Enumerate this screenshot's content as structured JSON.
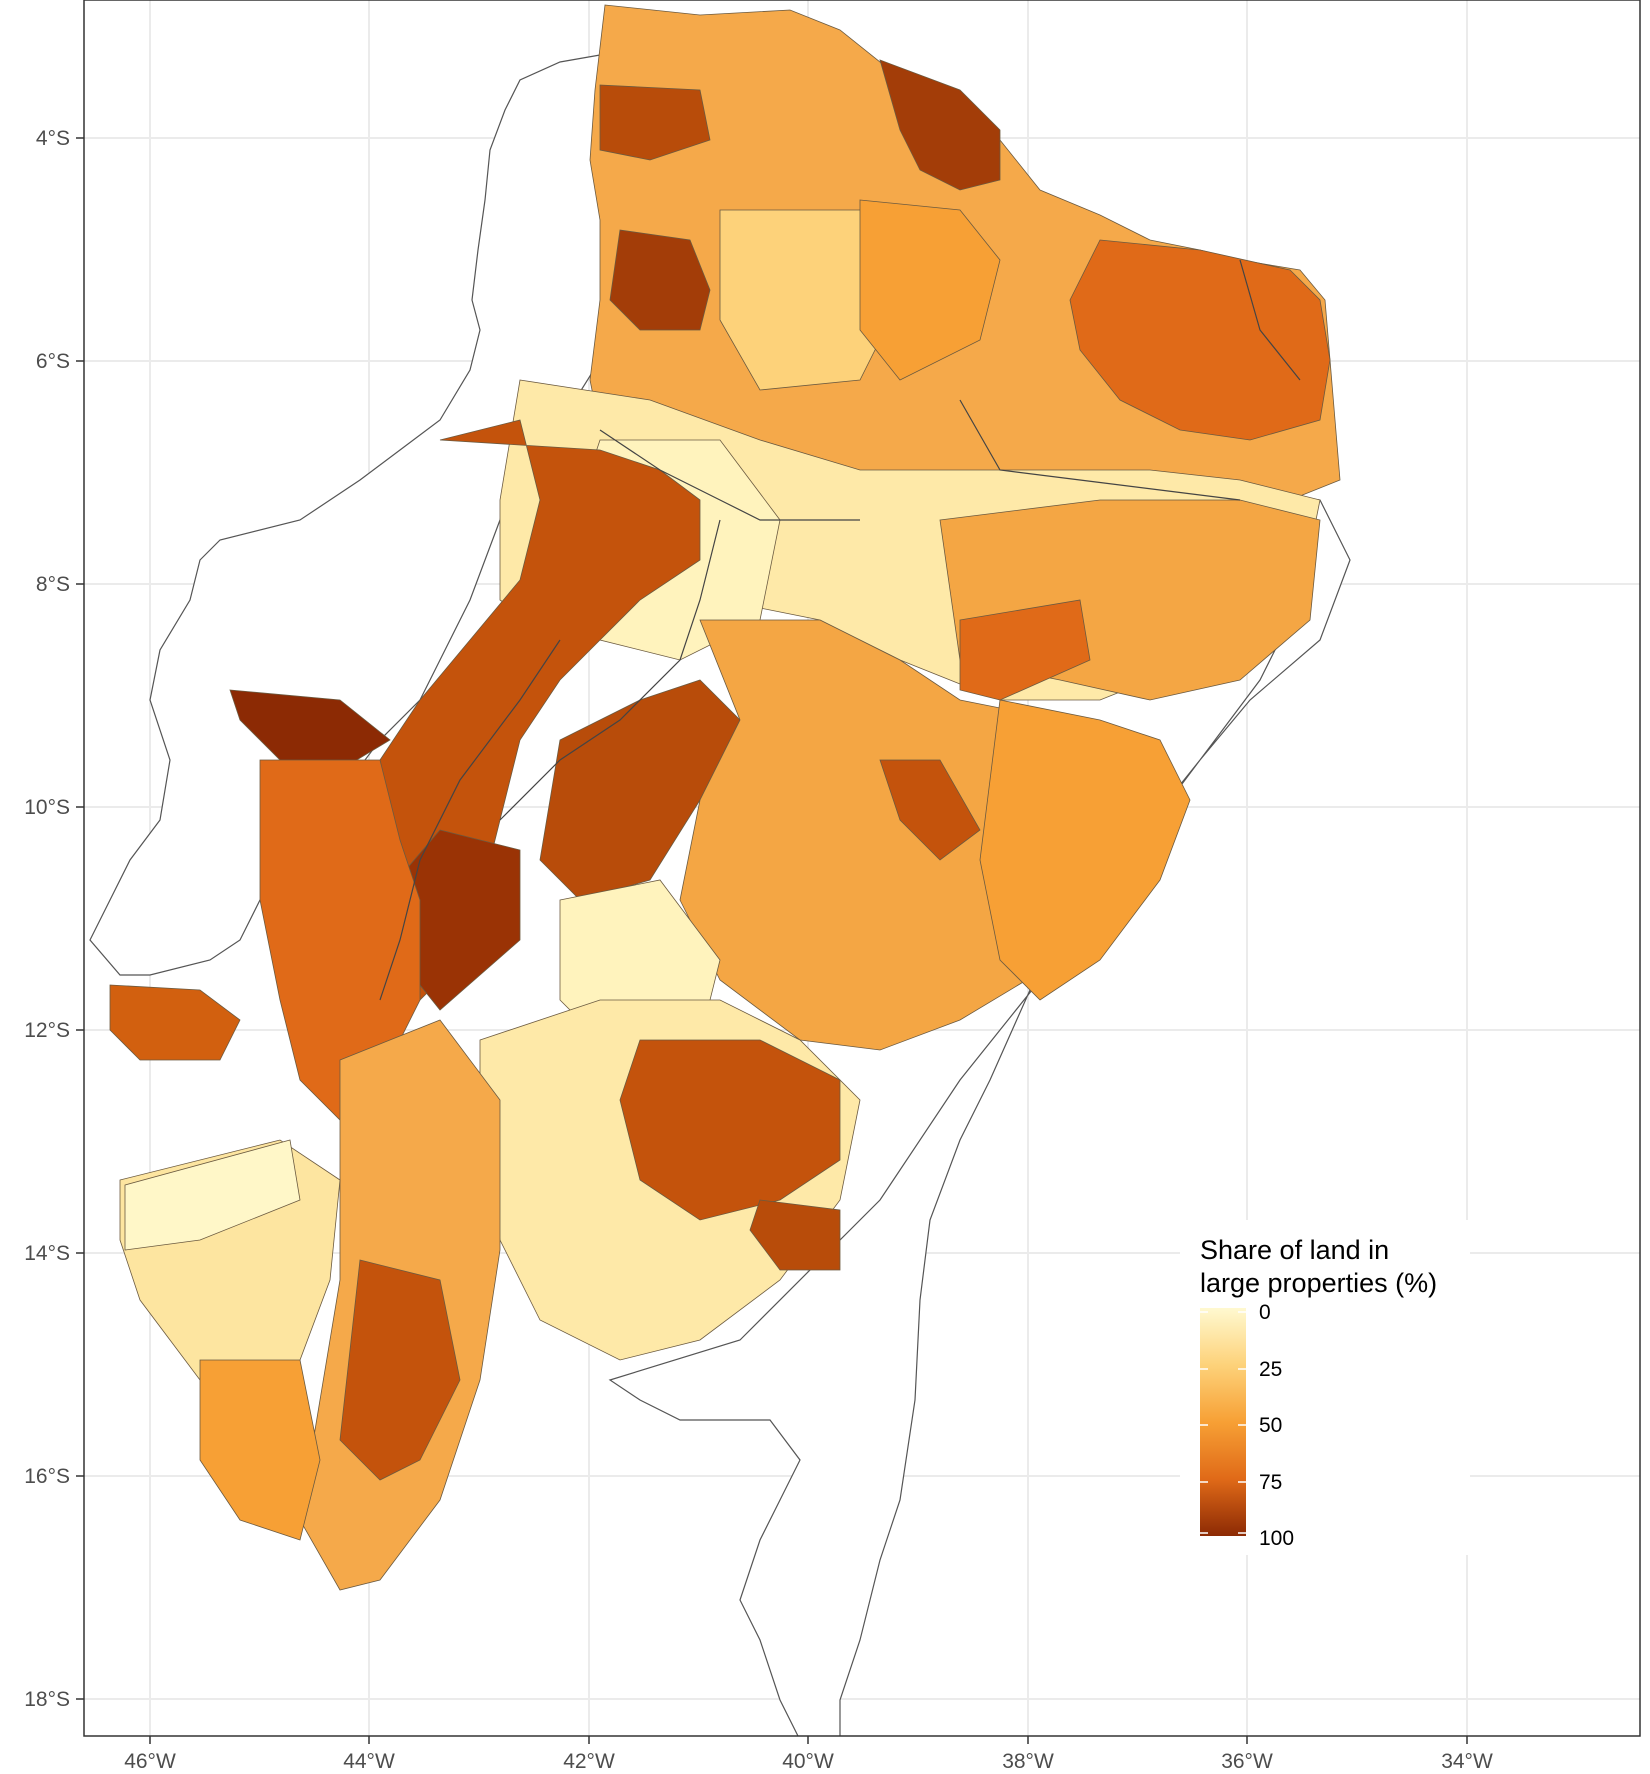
{
  "map": {
    "axes": {
      "x_ticks": [
        "46°W",
        "44°W",
        "42°W",
        "40°W",
        "38°W",
        "36°W",
        "34°W"
      ],
      "y_ticks": [
        "4°S",
        "6°S",
        "8°S",
        "10°S",
        "12°S",
        "14°S",
        "16°S",
        "18°S"
      ]
    },
    "legend": {
      "title_line1": "Share of land in",
      "title_line2": "large properties (%)",
      "ticks": [
        "0",
        "25",
        "50",
        "75",
        "100"
      ],
      "colors": [
        "#fff7c8",
        "#fdd27a",
        "#f7a035",
        "#e06a18",
        "#8c2a04"
      ]
    },
    "colors": {
      "panel_grid": "#ebebeb",
      "frame": "#333333",
      "boundary": "#555555"
    }
  }
}
